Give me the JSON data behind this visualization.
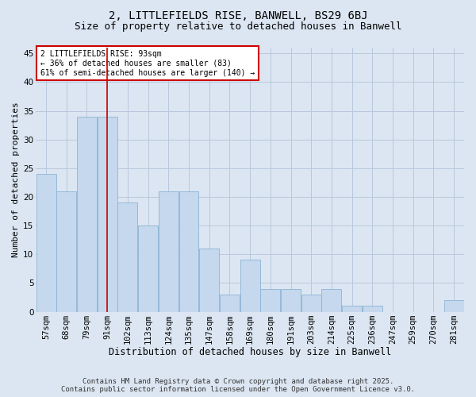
{
  "title1": "2, LITTLEFIELDS RISE, BANWELL, BS29 6BJ",
  "title2": "Size of property relative to detached houses in Banwell",
  "xlabel": "Distribution of detached houses by size in Banwell",
  "ylabel": "Number of detached properties",
  "categories": [
    "57sqm",
    "68sqm",
    "79sqm",
    "91sqm",
    "102sqm",
    "113sqm",
    "124sqm",
    "135sqm",
    "147sqm",
    "158sqm",
    "169sqm",
    "180sqm",
    "191sqm",
    "203sqm",
    "214sqm",
    "225sqm",
    "236sqm",
    "247sqm",
    "259sqm",
    "270sqm",
    "281sqm"
  ],
  "values": [
    24,
    21,
    34,
    34,
    19,
    15,
    21,
    21,
    11,
    3,
    9,
    4,
    4,
    3,
    4,
    1,
    1,
    0,
    0,
    0,
    2
  ],
  "bar_color": "#c5d8ed",
  "bar_edge_color": "#8cb4d4",
  "grid_color": "#b8c8dc",
  "bg_color": "#dce6f2",
  "vline_x_index": 3,
  "vline_color": "#cc0000",
  "annotation_text": "2 LITTLEFIELDS RISE: 93sqm\n← 36% of detached houses are smaller (83)\n61% of semi-detached houses are larger (140) →",
  "annotation_box_color": "#ffffff",
  "annotation_box_edge": "#cc0000",
  "ylim": [
    0,
    46
  ],
  "yticks": [
    0,
    5,
    10,
    15,
    20,
    25,
    30,
    35,
    40,
    45
  ],
  "footer": "Contains HM Land Registry data © Crown copyright and database right 2025.\nContains public sector information licensed under the Open Government Licence v3.0.",
  "title1_fontsize": 10,
  "title2_fontsize": 9,
  "xlabel_fontsize": 8.5,
  "ylabel_fontsize": 8,
  "tick_fontsize": 7.5,
  "footer_fontsize": 6.5,
  "annotation_fontsize": 7
}
